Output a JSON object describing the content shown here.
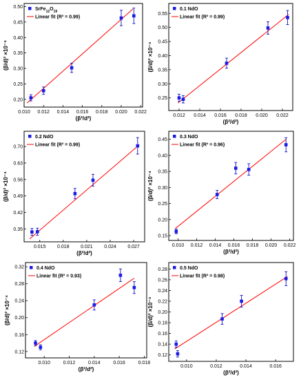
{
  "chart_data": [
    {
      "type": "scatter",
      "legend": {
        "sample": [
          "SrFe",
          "12",
          "O",
          "19"
        ],
        "fit": "Linear fit (R² = 0.99)",
        "placement": "top-left"
      },
      "xlabel": "(β²/d²)",
      "ylabel": "(β/d)² ×10⁻⁴",
      "xlim": [
        0.01,
        0.0222
      ],
      "ylim": [
        0.175,
        0.51
      ],
      "xticks": [
        "0.010",
        "0.012",
        "0.014",
        "0.016",
        "0.018",
        "0.020",
        "0.022"
      ],
      "yticks": [
        "0.20",
        "0.25",
        "0.30",
        "0.35",
        "0.40",
        "0.45",
        "0.50"
      ],
      "x": [
        0.0107,
        0.012,
        0.0149,
        0.02,
        0.0213
      ],
      "y": [
        0.205,
        0.228,
        0.302,
        0.463,
        0.47
      ],
      "err": [
        0.01,
        0.012,
        0.015,
        0.025,
        0.025
      ],
      "fit_line": {
        "x": [
          0.0103,
          0.0212
        ],
        "y": [
          0.188,
          0.492
        ]
      }
    },
    {
      "type": "scatter",
      "legend": {
        "sample": "0.1 NdO",
        "fit": "Linear fit (R² = 0.99)",
        "placement": "top-left"
      },
      "xlabel": "(β²/d²)",
      "ylabel": "(β/d)² ×10⁻⁴",
      "xlim": [
        0.011,
        0.023
      ],
      "ylim": [
        0.205,
        0.585
      ],
      "xticks": [
        "0.012",
        "0.014",
        "0.016",
        "0.018",
        "0.020",
        "0.022"
      ],
      "yticks": [
        "0.25",
        "0.30",
        "0.35",
        "0.40",
        "0.45",
        "0.50",
        "0.55"
      ],
      "x": [
        0.012,
        0.0124,
        0.0166,
        0.0206,
        0.0225
      ],
      "y": [
        0.25,
        0.245,
        0.373,
        0.498,
        0.535
      ],
      "err": [
        0.013,
        0.013,
        0.018,
        0.022,
        0.025
      ],
      "fit_line": {
        "x": [
          0.0119,
          0.0226
        ],
        "y": [
          0.232,
          0.546
        ]
      }
    },
    {
      "type": "scatter",
      "legend": {
        "sample": "0.2 NdO",
        "fit": "Linear fit (R² = 0.99)",
        "placement": "top-left"
      },
      "xlabel": "(β²/d²)",
      "ylabel": "(β/d)² ×10⁻⁴",
      "xlim": [
        0.013,
        0.0284
      ],
      "ylim": [
        0.295,
        0.765
      ],
      "xticks": [
        "0.015",
        "0.018",
        "0.021",
        "0.024",
        "0.027"
      ],
      "yticks": [
        "0.35",
        "0.42",
        "0.49",
        "0.56",
        "0.63",
        "0.70"
      ],
      "x": [
        0.014,
        0.0147,
        0.0195,
        0.0218,
        0.0275
      ],
      "y": [
        0.337,
        0.338,
        0.5,
        0.557,
        0.703
      ],
      "err": [
        0.015,
        0.015,
        0.022,
        0.025,
        0.035
      ],
      "fit_line": {
        "x": [
          0.0137,
          0.0277
        ],
        "y": [
          0.307,
          0.707
        ]
      }
    },
    {
      "type": "scatter",
      "legend": {
        "sample": "0.3 NdO",
        "fit": "Linear fit (R² = 0.96)",
        "placement": "top-left"
      },
      "xlabel": "(β²/d²)",
      "ylabel": "(β/d)² ×10⁻⁴",
      "xlim": [
        0.009,
        0.0224
      ],
      "ylim": [
        0.135,
        0.475
      ],
      "xticks": [
        "0.010",
        "0.012",
        "0.014",
        "0.016",
        "0.018",
        "0.020",
        "0.022"
      ],
      "yticks": [
        "0.15",
        "0.20",
        "0.25",
        "0.30",
        "0.35",
        "0.40",
        "0.45"
      ],
      "x": [
        0.0098,
        0.0142,
        0.0162,
        0.0176,
        0.0216
      ],
      "y": [
        0.163,
        0.278,
        0.36,
        0.356,
        0.433
      ],
      "err": [
        0.007,
        0.013,
        0.018,
        0.018,
        0.022
      ],
      "fit_line": {
        "x": [
          0.0097,
          0.0216
        ],
        "y": [
          0.172,
          0.45
        ]
      }
    },
    {
      "type": "scatter",
      "legend": {
        "sample": "0.4 NdO",
        "fit": "Linear fit (R² = 0.93)",
        "placement": "top-left"
      },
      "xlabel": "(β²/d²)",
      "ylabel": "(β/d)² ×10⁻⁴",
      "xlim": [
        0.0085,
        0.0182
      ],
      "ylim": [
        0.105,
        0.33
      ],
      "xticks": [
        "0.010",
        "0.012",
        "0.014",
        "0.016",
        "0.018"
      ],
      "yticks": [
        "0.12",
        "0.16",
        "0.20",
        "0.24",
        "0.28",
        "0.32"
      ],
      "x": [
        0.0093,
        0.0097,
        0.014,
        0.0161,
        0.0172
      ],
      "y": [
        0.14,
        0.13,
        0.23,
        0.3,
        0.271
      ],
      "err": [
        0.006,
        0.006,
        0.012,
        0.015,
        0.014
      ],
      "fit_line": {
        "x": [
          0.0092,
          0.0172
        ],
        "y": [
          0.132,
          0.293
        ]
      }
    },
    {
      "type": "scatter",
      "legend": {
        "sample": "0.5 NdO",
        "fit": "Linear fit (R² = 0.98)",
        "placement": "top-left"
      },
      "xlabel": "(β²/d²)",
      "ylabel": "(β/d)² ×10⁻⁴",
      "xlim": [
        0.0088,
        0.0172
      ],
      "ylim": [
        0.108,
        0.292
      ],
      "xticks": [
        "0.010",
        "0.012",
        "0.014",
        "0.016"
      ],
      "yticks": [
        "0.12",
        "0.14",
        "0.16",
        "0.18",
        "0.20",
        "0.22",
        "0.24",
        "0.26",
        "0.28"
      ],
      "x": [
        0.0093,
        0.0094,
        0.0124,
        0.0137,
        0.0167
      ],
      "y": [
        0.14,
        0.122,
        0.187,
        0.22,
        0.262
      ],
      "err": [
        0.006,
        0.006,
        0.01,
        0.011,
        0.013
      ],
      "fit_line": {
        "x": [
          0.0092,
          0.0168
        ],
        "y": [
          0.131,
          0.266
        ]
      }
    }
  ]
}
